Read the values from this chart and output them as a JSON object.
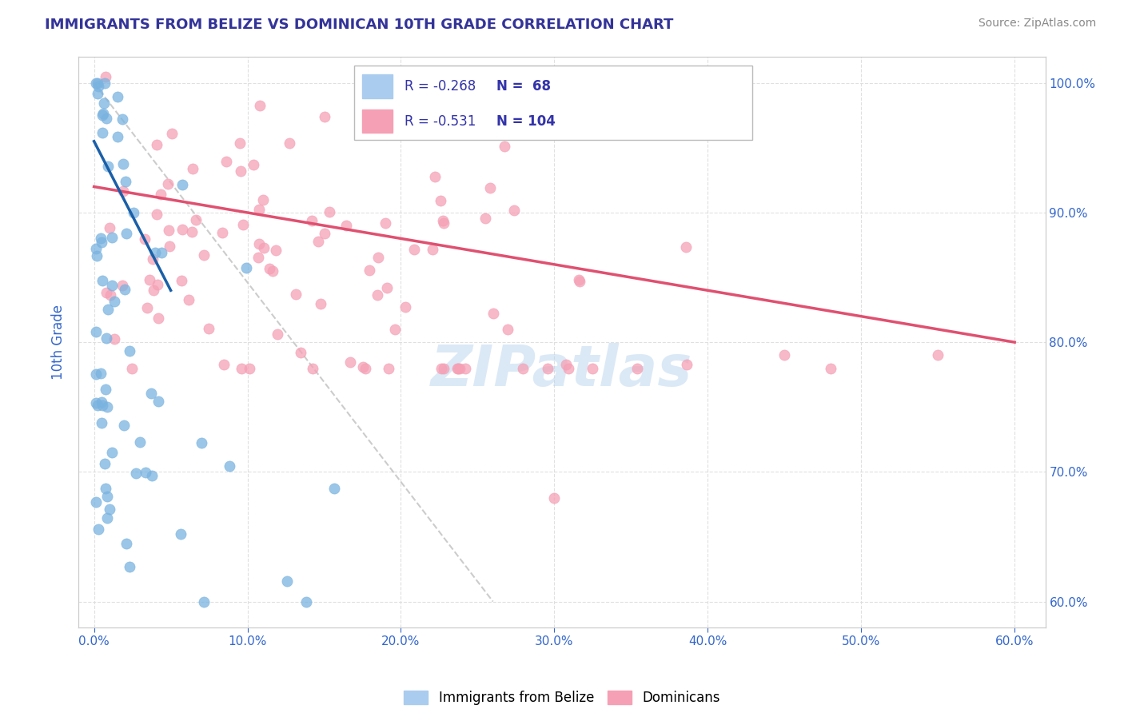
{
  "title": "IMMIGRANTS FROM BELIZE VS DOMINICAN 10TH GRADE CORRELATION CHART",
  "source_text": "Source: ZipAtlas.com",
  "ylabel": "10th Grade",
  "xlim": [
    0.0,
    60.0
  ],
  "ylim": [
    60.0,
    100.0
  ],
  "xtick_positions": [
    0,
    10,
    20,
    30,
    40,
    50,
    60
  ],
  "xtick_labels": [
    "0.0%",
    "10.0%",
    "20.0%",
    "30.0%",
    "40.0%",
    "50.0%",
    "60.0%"
  ],
  "ytick_positions": [
    60,
    70,
    80,
    90,
    100
  ],
  "ytick_labels": [
    "60.0%",
    "70.0%",
    "80.0%",
    "90.0%",
    "100.0%"
  ],
  "belize_R": -0.268,
  "belize_N": 68,
  "dominican_R": -0.531,
  "dominican_N": 104,
  "belize_scatter_color": "#7ab3e0",
  "dominican_scatter_color": "#f5a0b5",
  "belize_line_color": "#1a5fa8",
  "dominican_line_color": "#e05070",
  "diagonal_color": "#cccccc",
  "background_color": "#ffffff",
  "grid_color": "#dddddd",
  "title_color": "#333399",
  "source_color": "#888888",
  "label_color": "#3366cc",
  "watermark": "ZIPatlas",
  "watermark_color": "#b8d4ee",
  "belize_legend_color": "#aaccee",
  "dominican_legend_color": "#f5a0b5",
  "legend_text_color": "#3333aa",
  "legend_N_color": "#000000"
}
